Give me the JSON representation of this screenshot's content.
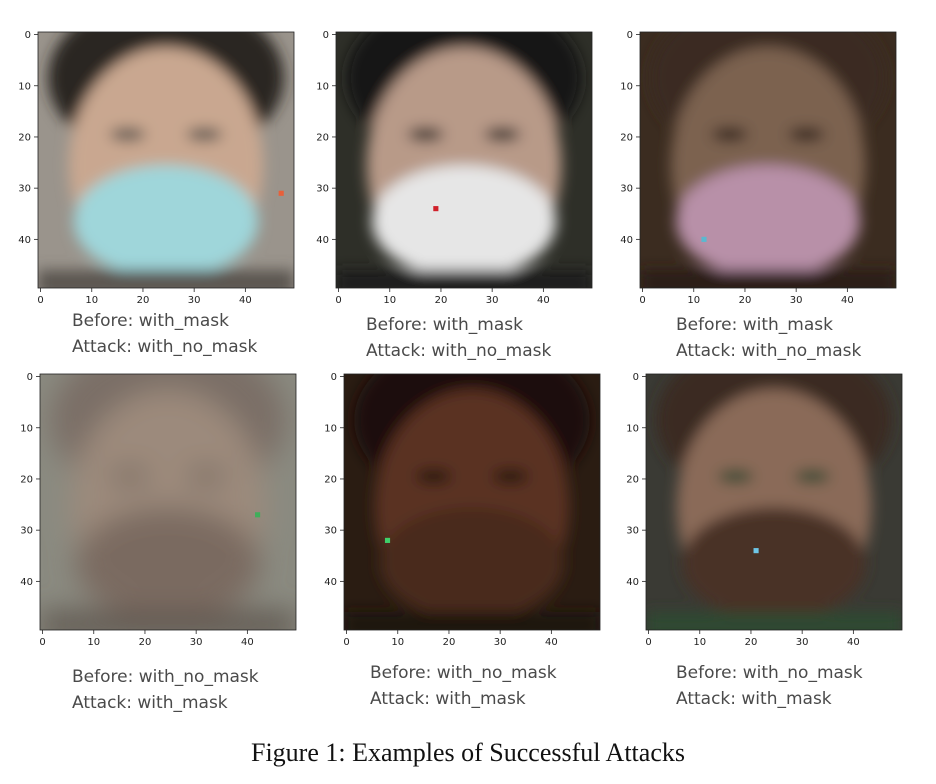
{
  "figure_caption": "Figure 1: Examples of Successful Attacks",
  "axis": {
    "y_ticks": [
      "0",
      "10",
      "20",
      "30",
      "40"
    ],
    "x_ticks": [
      "0",
      "10",
      "20",
      "30",
      "40"
    ]
  },
  "panels": [
    {
      "before": "Before: with_mask",
      "attack": "Attack: with_no_mask",
      "perturbation_pixel": [
        47,
        31
      ],
      "perturbation_color": "#e8603a",
      "face": {
        "bg": "#9a948c",
        "skin": "#c9a790",
        "hair": "#2a2522",
        "mask": "#9fd6da",
        "shade": "#5a5450"
      }
    },
    {
      "before": "Before: with_mask",
      "attack": "Attack: with_no_mask",
      "perturbation_pixel": [
        19,
        34
      ],
      "perturbation_color": "#d0202a",
      "face": {
        "bg": "#2e2f28",
        "skin": "#b89a88",
        "hair": "#141414",
        "mask": "#e6e6e6",
        "shade": "#1a1a1a"
      }
    },
    {
      "before": "Before: with_mask",
      "attack": "Attack: with_no_mask",
      "perturbation_pixel": [
        12,
        40
      ],
      "perturbation_color": "#5ab8d0",
      "face": {
        "bg": "#3b2c20",
        "skin": "#7c6250",
        "hair": "#3a2b20",
        "mask": "#b890a8",
        "shade": "#2a1e18"
      }
    },
    {
      "before": "Before: with_no_mask",
      "attack": "Attack: with_mask",
      "perturbation_pixel": [
        42,
        27
      ],
      "perturbation_color": "#3fae5a",
      "face": {
        "bg": "#8a8a80",
        "skin": "#9c8a7c",
        "hair": "#7a6e66",
        "mask": "#7a6a60",
        "shade": "#5e5650"
      }
    },
    {
      "before": "Before: with_no_mask",
      "attack": "Attack: with_mask",
      "perturbation_pixel": [
        8,
        32
      ],
      "perturbation_color": "#3fd06a",
      "face": {
        "bg": "#2a1c12",
        "skin": "#5a3220",
        "hair": "#1a100a",
        "mask": "#4a2a1a",
        "shade": "#1e120a"
      }
    },
    {
      "before": "Before: with_no_mask",
      "attack": "Attack: with_mask",
      "perturbation_pixel": [
        21,
        34
      ],
      "perturbation_color": "#6ec6e6",
      "face": {
        "bg": "#3a3a34",
        "skin": "#8a6a58",
        "hair": "#3a2c24",
        "mask": "#4a3028",
        "shade": "#2e4a30"
      }
    }
  ]
}
